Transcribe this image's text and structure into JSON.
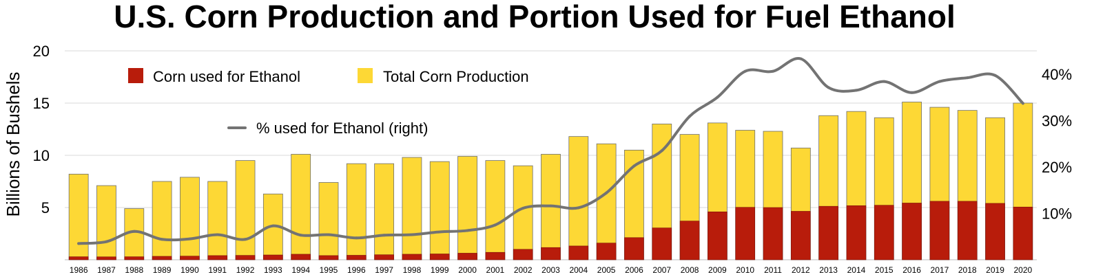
{
  "chart_data": {
    "type": "bar",
    "title": "U.S. Corn Production and Portion Used for Fuel Ethanol",
    "ylabel": "Billions of Bushels",
    "ylim": [
      0,
      20
    ],
    "y_ticks": [
      5,
      10,
      15,
      20
    ],
    "y2lim": [
      0,
      45
    ],
    "y2_ticks": [
      "10%",
      "20%",
      "30%",
      "40%"
    ],
    "y2_tick_values": [
      10,
      20,
      30,
      40
    ],
    "grid": true,
    "legend_placement": "top-left",
    "categories": [
      "1986",
      "1987",
      "1988",
      "1989",
      "1990",
      "1991",
      "1992",
      "1993",
      "1994",
      "1995",
      "1996",
      "1997",
      "1998",
      "1999",
      "2000",
      "2001",
      "2002",
      "2003",
      "2004",
      "2005",
      "2006",
      "2007",
      "2008",
      "2009",
      "2010",
      "2011",
      "2012",
      "2013",
      "2014",
      "2015",
      "2016",
      "2017",
      "2018",
      "2019",
      "2020"
    ],
    "series": [
      {
        "name": "Corn used for Ethanol",
        "type": "bar",
        "axis": "left",
        "color": "#b81c0b",
        "values": [
          0.29,
          0.28,
          0.29,
          0.33,
          0.35,
          0.4,
          0.42,
          0.46,
          0.53,
          0.4,
          0.43,
          0.48,
          0.53,
          0.56,
          0.63,
          0.71,
          1.0,
          1.17,
          1.32,
          1.6,
          2.12,
          3.05,
          3.71,
          4.59,
          5.02,
          5.0,
          4.64,
          5.12,
          5.18,
          5.22,
          5.43,
          5.6,
          5.6,
          5.4,
          5.05
        ]
      },
      {
        "name": "Total Corn Production",
        "type": "bar",
        "axis": "left",
        "color": "#fdd835",
        "values": [
          8.2,
          7.1,
          4.9,
          7.5,
          7.9,
          7.5,
          9.5,
          6.3,
          10.1,
          7.4,
          9.2,
          9.2,
          9.8,
          9.4,
          9.9,
          9.5,
          9.0,
          10.1,
          11.8,
          11.1,
          10.5,
          13.0,
          12.0,
          13.1,
          12.4,
          12.3,
          10.7,
          13.8,
          14.2,
          13.6,
          15.1,
          14.6,
          14.3,
          13.6,
          15.0
        ]
      },
      {
        "name": "% used for Ethanol (right)",
        "type": "line",
        "axis": "right",
        "color": "#737373",
        "values": [
          3.5,
          3.9,
          6.1,
          4.4,
          4.5,
          5.4,
          4.4,
          7.3,
          5.3,
          5.4,
          4.7,
          5.3,
          5.4,
          6.0,
          6.3,
          7.5,
          11.1,
          11.6,
          11.2,
          14.4,
          20.2,
          23.5,
          30.9,
          35.0,
          40.6,
          40.6,
          43.3,
          37.1,
          36.5,
          38.4,
          36.0,
          38.4,
          39.2,
          39.7,
          33.7
        ]
      }
    ]
  }
}
